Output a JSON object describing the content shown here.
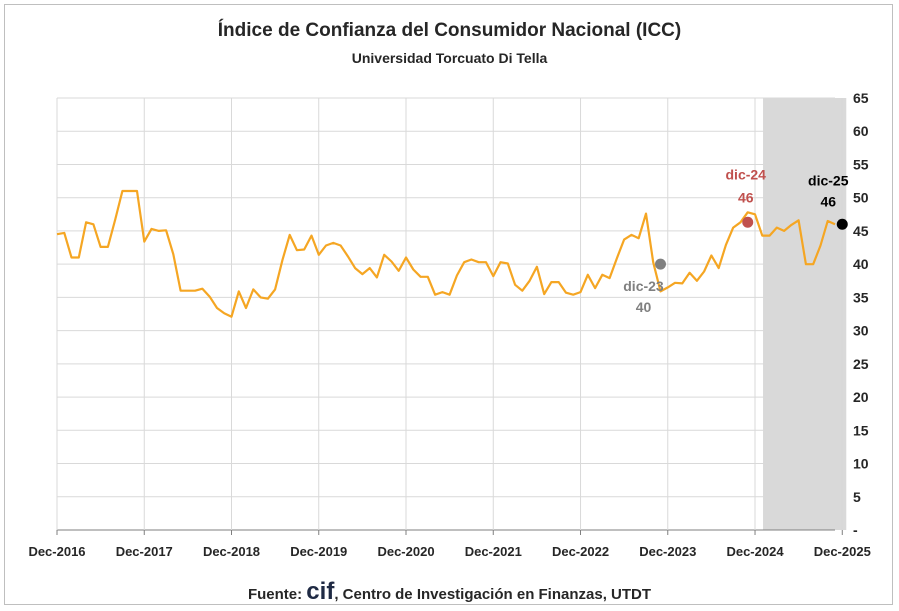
{
  "chart_data": {
    "type": "line",
    "title": "Índice de Confianza del Consumidor Nacional (ICC)",
    "subtitle": "Universidad Torcuato Di Tella",
    "xlabel": "",
    "ylabel": "",
    "ylim": [
      0,
      65
    ],
    "y_ticks": [
      "-",
      "5",
      "10",
      "15",
      "20",
      "25",
      "30",
      "35",
      "40",
      "45",
      "50",
      "55",
      "60",
      "65"
    ],
    "y_axis_position": "right",
    "x_tick_labels": [
      "Dec-2016",
      "Dec-2017",
      "Dec-2018",
      "Dec-2019",
      "Dec-2020",
      "Dec-2021",
      "Dec-2022",
      "Dec-2023",
      "Dec-2024",
      "Dec-2025"
    ],
    "grid": true,
    "line_color": "#f5a623",
    "shaded_region": {
      "from": "Dec-2024",
      "to": "Dec-2025",
      "color": "#d9d9d9"
    },
    "series": [
      {
        "values": [
          44.5,
          44.7,
          41,
          41,
          46.3,
          46,
          42.6,
          42.6,
          46.7,
          51,
          51,
          51,
          43.4,
          45.3,
          45,
          45.1,
          41.5,
          36,
          36,
          36,
          36.3,
          35.1,
          33.4,
          32.6,
          32.1,
          35.9,
          33.4,
          36.2,
          35,
          34.8,
          36.2,
          40.6,
          44.4,
          42.1,
          42.2,
          44.3,
          41.4,
          42.8,
          43.2,
          42.8,
          41.2,
          39.4,
          38.5,
          39.4,
          38,
          41.4,
          40.4,
          39,
          41,
          39.2,
          38.1,
          38.1,
          35.4,
          35.8,
          35.4,
          38.3,
          40.3,
          40.7,
          40.3,
          40.3,
          38.2,
          40.3,
          40.1,
          36.9,
          36,
          37.5,
          39.6,
          35.5,
          37.3,
          37.3,
          35.7,
          35.4,
          35.8,
          38.4,
          36.4,
          38.4,
          37.9,
          40.9,
          43.7,
          44.4,
          43.9,
          47.6,
          40.3,
          35.9,
          36.5,
          37.2,
          37.1,
          38.7,
          37.5,
          38.9,
          41.3,
          39.4,
          42.9,
          45.5,
          46.3,
          47.8,
          47.5,
          44.3,
          44.3,
          45.5,
          45,
          45.9,
          46.6,
          40,
          40,
          42.8,
          46.5,
          46
        ]
      }
    ],
    "annotations": [
      {
        "label": "dic-23",
        "value": "40",
        "x_index": 83,
        "y": 40,
        "color": "#808080"
      },
      {
        "label": "dic-24",
        "value": "46",
        "x_index": 95,
        "y": 46.3,
        "color": "#c0504d"
      },
      {
        "label": "dic-25",
        "value": "46",
        "x_index": 108,
        "y": 46,
        "color": "#000000"
      }
    ]
  },
  "footer": {
    "prefix": "Fuente: ",
    "logo_text": "cif",
    "suffix": ", Centro de Investigación en Finanzas, UTDT"
  }
}
